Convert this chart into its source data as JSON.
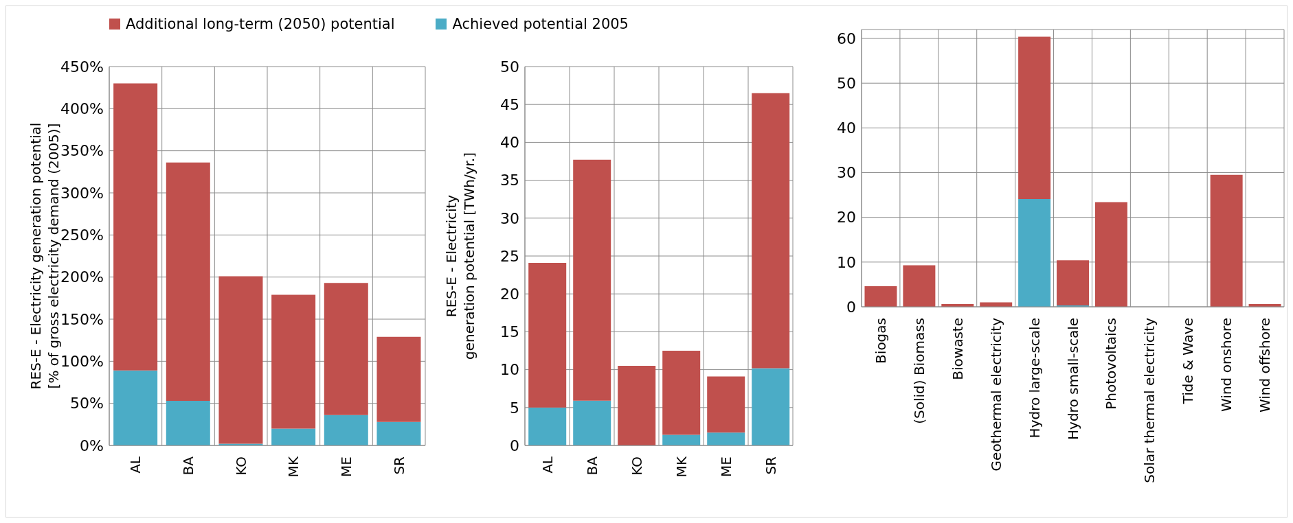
{
  "chart_data": [
    {
      "type": "bar",
      "stacked": true,
      "legend": "top",
      "grid": true,
      "ylabel": "RES-E - Electricity generation potential\n[% of gross electricity demand (2005)]",
      "categories": [
        "AL",
        "BA",
        "KO",
        "MK",
        "ME",
        "SR"
      ],
      "ylim": [
        0,
        450
      ],
      "yticks": [
        {
          "value": 0,
          "label": "0%"
        },
        {
          "value": 50,
          "label": "50%"
        },
        {
          "value": 100,
          "label": "100%"
        },
        {
          "value": 150,
          "label": "150%"
        },
        {
          "value": 200,
          "label": "200%"
        },
        {
          "value": 250,
          "label": "250%"
        },
        {
          "value": 300,
          "label": "300%"
        },
        {
          "value": 350,
          "label": "350%"
        },
        {
          "value": 400,
          "label": "400%"
        },
        {
          "value": 450,
          "label": "450%"
        }
      ],
      "series": [
        {
          "name": "Achieved potential 2005",
          "color": "#4bacc6",
          "values": [
            89,
            53,
            2,
            20,
            36,
            28
          ]
        },
        {
          "name": "Additional long-term (2050) potential",
          "color": "#c0504d",
          "values": [
            341,
            283,
            199,
            159,
            157,
            101
          ]
        }
      ]
    },
    {
      "type": "bar",
      "stacked": true,
      "grid": true,
      "ylabel": "RES-E - Electricity\ngeneration potential [TWh/yr.]",
      "categories": [
        "AL",
        "BA",
        "KO",
        "MK",
        "ME",
        "SR"
      ],
      "ylim": [
        0,
        50
      ],
      "yticks": [
        0,
        5,
        10,
        15,
        20,
        25,
        30,
        35,
        40,
        45,
        50
      ],
      "series": [
        {
          "color": "#4bacc6",
          "values": [
            5.0,
            5.9,
            null,
            1.4,
            1.7,
            10.2
          ]
        },
        {
          "color": "#c0504d",
          "values": [
            19.1,
            31.8,
            10.5,
            11.1,
            7.4,
            36.3
          ]
        }
      ]
    },
    {
      "type": "bar",
      "stacked": true,
      "grid": true,
      "categories": [
        "Biogas",
        "(Solid) Biomass",
        "Biowaste",
        "Geothermal electricity",
        "Hydro large-scale",
        "Hydro small-scale",
        "Photovoltaics",
        "Solar thermal electricity",
        "Tide & Wave",
        "Wind onshore",
        "Wind offshore"
      ],
      "ylim": [
        0,
        62
      ],
      "yticks": [
        0,
        10,
        20,
        30,
        40,
        50,
        60
      ],
      "series": [
        {
          "color": "#4bacc6",
          "values": [
            0,
            0,
            0,
            0,
            24.1,
            0.3,
            0,
            0,
            0,
            0,
            0
          ]
        },
        {
          "color": "#c0504d",
          "values": [
            4.6,
            9.3,
            0.6,
            1.0,
            36.3,
            10.1,
            23.4,
            0,
            0,
            29.5,
            0.6
          ]
        }
      ]
    }
  ]
}
